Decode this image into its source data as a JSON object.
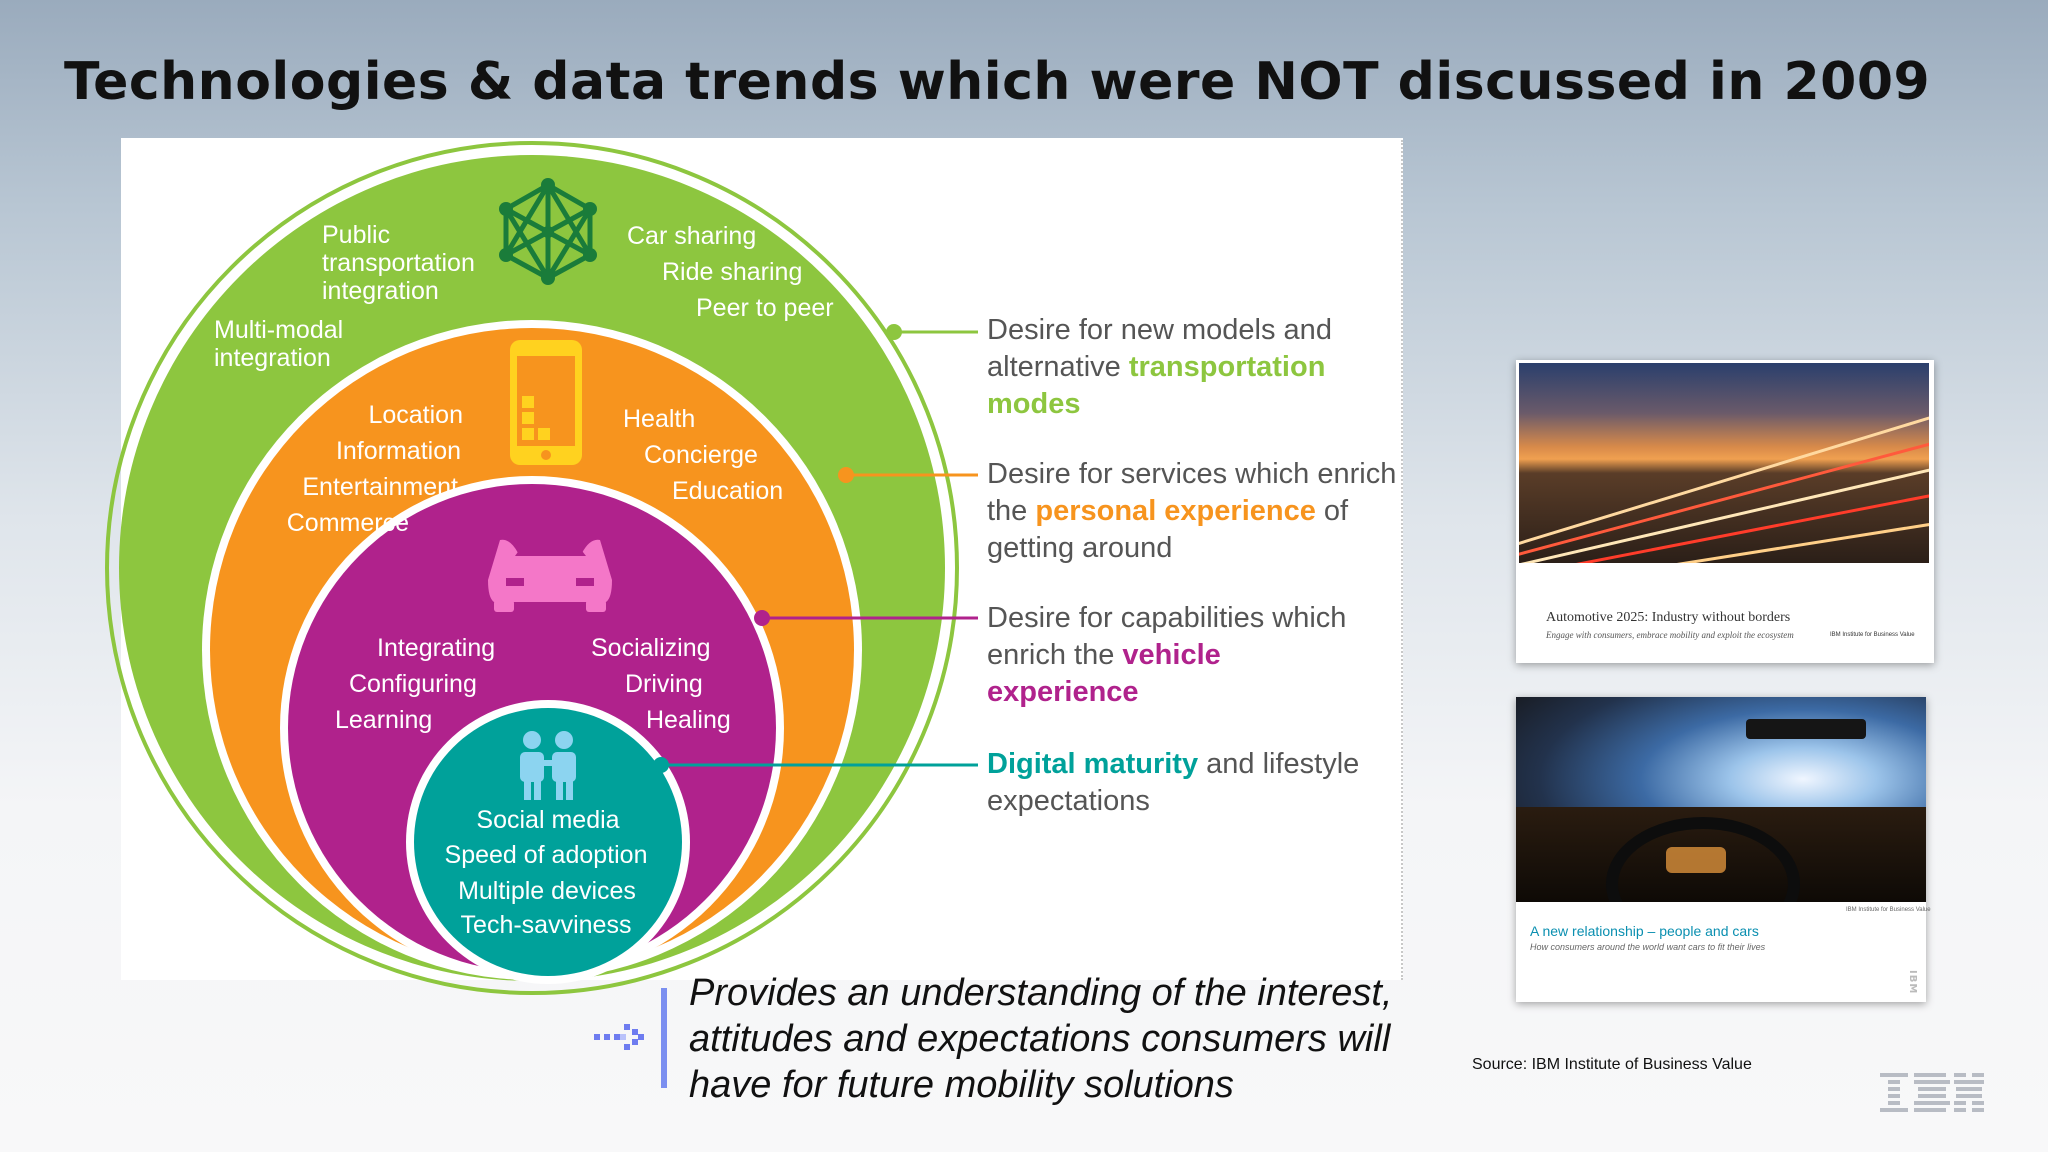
{
  "title": "Technologies & data trends which were NOT discussed in 2009",
  "colors": {
    "green": "#8dc63f",
    "orange": "#f7941e",
    "purple": "#b0228c",
    "teal": "#00a19a"
  },
  "rings": {
    "outer": {
      "icon": "network-icon",
      "items": [
        "Public",
        "transportation",
        "integration",
        "Multi-modal",
        "integration",
        "Car sharing",
        "Ride sharing",
        "Peer to peer"
      ]
    },
    "second": {
      "icon": "smartphone-icon",
      "items": [
        "Location",
        "Information",
        "Entertainment",
        "Commerce",
        "Health",
        "Concierge",
        "Education"
      ]
    },
    "third": {
      "icon": "car-icon",
      "items": [
        "Integrating",
        "Configuring",
        "Learning",
        "Socializing",
        "Driving",
        "Healing"
      ]
    },
    "inner": {
      "icon": "people-icon",
      "items": [
        "Social media",
        "Speed of adoption",
        "Multiple devices",
        "Tech-savviness"
      ]
    }
  },
  "callouts": [
    {
      "pre": "Desire for new models and alternative ",
      "highlight": "transportation modes",
      "post": ""
    },
    {
      "pre": "Desire for services which enrich the ",
      "highlight": "personal experience",
      "post": " of getting around"
    },
    {
      "pre": "Desire for capabilities which enrich the ",
      "highlight": "vehicle experience",
      "post": ""
    },
    {
      "pre": "",
      "highlight": "Digital maturity",
      "post": " and lifestyle expectations"
    }
  ],
  "covers": [
    {
      "title": "Automotive 2025: Industry without borders",
      "subtitle": "Engage with consumers, embrace mobility and exploit the ecosystem",
      "tag": "IBM Institute for Business Value"
    },
    {
      "title": "A new relationship – people and cars",
      "subtitle": "How consumers around the world want cars to fit their lives",
      "tag": "IBM Institute for Business Value",
      "logo": "IBM"
    }
  ],
  "quote": [
    "Provides an understanding of the interest,",
    "attitudes and expectations consumers will",
    "have for future mobility solutions"
  ],
  "source": "Source: IBM Institute of Business Value",
  "logo": "IBM"
}
